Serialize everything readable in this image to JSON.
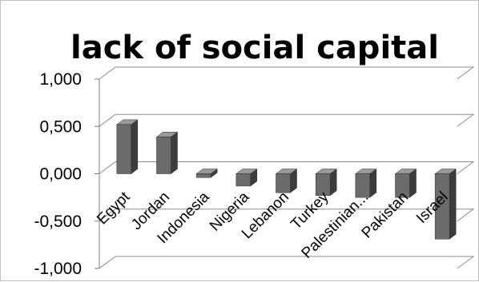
{
  "chart_data": {
    "type": "bar",
    "title": "lack of social capital",
    "categories": [
      "Egypt",
      "Jordan",
      "Indonesia",
      "Nigeria",
      "Lebanon",
      "Turkey",
      "Palestinian...",
      "Pakistan",
      "Israel"
    ],
    "series": [
      {
        "values": [
          0.52,
          0.39,
          -0.04,
          -0.13,
          -0.2,
          -0.23,
          -0.25,
          -0.25,
          -0.69
        ]
      }
    ],
    "ylim": [
      -1,
      1
    ],
    "yticks": [
      "1,000",
      "0,500",
      "0,000",
      "-0,500",
      "-1,000"
    ],
    "ytick_values": [
      1,
      0.5,
      0,
      -0.5,
      -1
    ],
    "xlabel": "",
    "ylabel": "",
    "grid": true,
    "legend": "none",
    "style": "3d-column"
  },
  "colors": {
    "bar_front": "#6b6b6b",
    "bar_side": "#3c3c3c",
    "bar_top": "#9a9a9a",
    "gridline": "#8c8c8c",
    "axis": "#7f7f7f",
    "frame": "#bfbfbf"
  }
}
